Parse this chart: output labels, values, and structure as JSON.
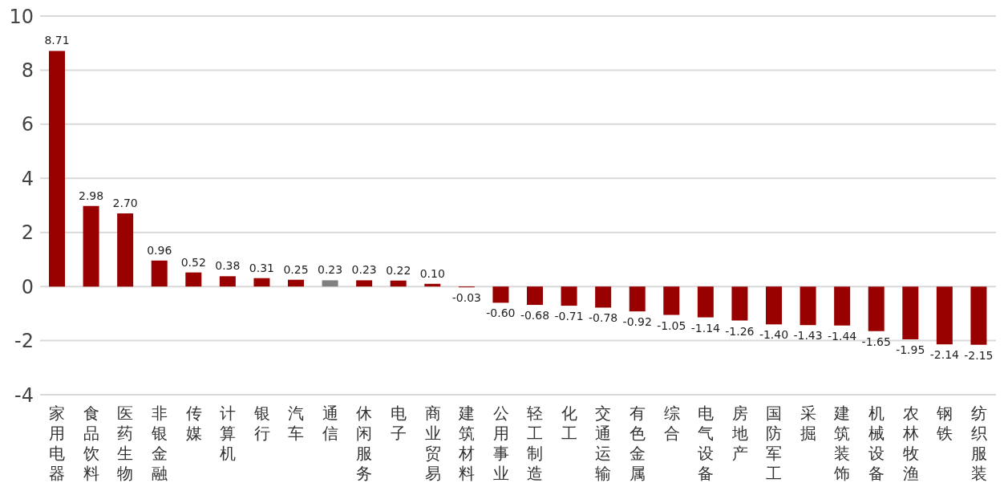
{
  "chart_data": {
    "type": "bar",
    "categories": [
      "家用电器",
      "食品饮料",
      "医药生物",
      "非银金融",
      "传媒",
      "计算机",
      "银行",
      "汽车",
      "通信",
      "休闲服务",
      "电子",
      "商业贸易",
      "建筑材料",
      "公用事业",
      "轻工制造",
      "化工",
      "交通运输",
      "有色金属",
      "综合",
      "电气设备",
      "房地产",
      "国防军工",
      "采掘",
      "建筑装饰",
      "机械设备",
      "农林牧渔",
      "钢铁",
      "纺织服装"
    ],
    "values": [
      8.71,
      2.98,
      2.7,
      0.96,
      0.52,
      0.38,
      0.31,
      0.25,
      0.23,
      0.23,
      0.22,
      0.1,
      -0.03,
      -0.6,
      -0.68,
      -0.71,
      -0.78,
      -0.92,
      -1.05,
      -1.14,
      -1.26,
      -1.4,
      -1.43,
      -1.44,
      -1.65,
      -1.95,
      -2.14,
      -2.15
    ],
    "value_labels": [
      "8.71",
      "2.98",
      "2.70",
      "0.96",
      "0.52",
      "0.38",
      "0.31",
      "0.25",
      "0.23",
      "0.23",
      "0.22",
      "0.10",
      "-0.03",
      "-0.60",
      "-0.68",
      "-0.71",
      "-0.78",
      "-0.92",
      "-1.05",
      "-1.14",
      "-1.26",
      "-1.40",
      "-1.43",
      "-1.44",
      "-1.65",
      "-1.95",
      "-2.14",
      "-2.15"
    ],
    "colors": [
      "#990000",
      "#990000",
      "#990000",
      "#990000",
      "#990000",
      "#990000",
      "#990000",
      "#990000",
      "#808080",
      "#990000",
      "#990000",
      "#990000",
      "#990000",
      "#990000",
      "#990000",
      "#990000",
      "#990000",
      "#990000",
      "#990000",
      "#990000",
      "#990000",
      "#990000",
      "#990000",
      "#990000",
      "#990000",
      "#990000",
      "#990000",
      "#990000"
    ],
    "ylim": [
      -4,
      10
    ],
    "yticks": [
      -4,
      -2,
      0,
      2,
      4,
      6,
      8,
      10
    ],
    "grid": "y",
    "legend": false
  }
}
